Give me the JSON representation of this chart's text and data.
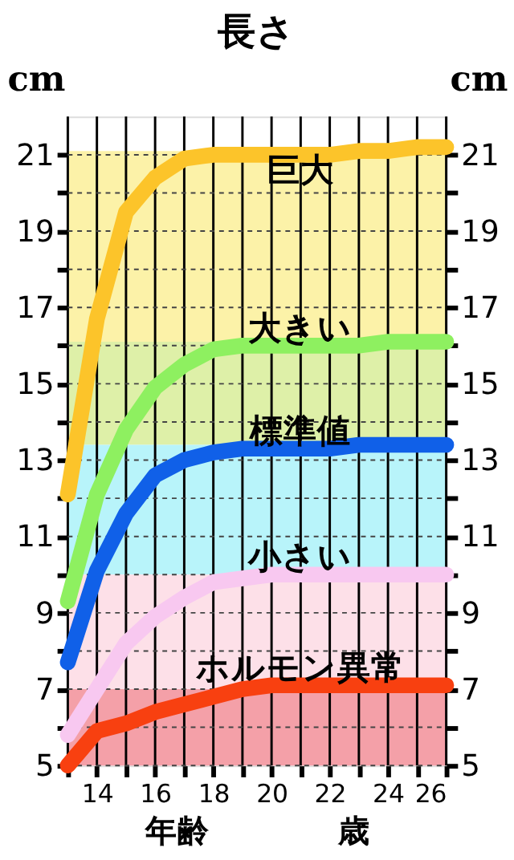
{
  "chart_data": {
    "type": "line",
    "title": "長さ",
    "xlabel": "年齢　　　　歳",
    "ylabel": "cm",
    "y2label": "cm",
    "x": [
      13,
      14,
      15,
      16,
      17,
      18,
      19,
      20,
      21,
      22,
      23,
      24,
      25,
      26
    ],
    "series": [
      {
        "name": "巨大",
        "color": "#fcc42a",
        "values": [
          12.1,
          16.7,
          19.5,
          20.4,
          20.9,
          21.0,
          21.0,
          21.0,
          21.0,
          21.0,
          21.1,
          21.1,
          21.2,
          21.2
        ]
      },
      {
        "name": "大きい",
        "color": "#8ef060",
        "values": [
          9.3,
          12.1,
          13.8,
          14.9,
          15.5,
          15.9,
          16.0,
          16.0,
          16.0,
          16.0,
          16.0,
          16.1,
          16.1,
          16.1
        ]
      },
      {
        "name": "標準値",
        "color": "#1060e8",
        "values": [
          7.7,
          10.1,
          11.6,
          12.6,
          13.0,
          13.2,
          13.3,
          13.3,
          13.3,
          13.3,
          13.4,
          13.4,
          13.4,
          13.4
        ]
      },
      {
        "name": "小さい",
        "color": "#f8c8f0",
        "values": [
          5.8,
          7.0,
          8.2,
          8.9,
          9.4,
          9.8,
          9.9,
          10.0,
          10.0,
          10.0,
          10.0,
          10.0,
          10.0,
          10.0
        ]
      },
      {
        "name": "ホルモン異常",
        "color": "#f84010",
        "values": [
          5.0,
          5.9,
          6.1,
          6.4,
          6.6,
          6.8,
          7.0,
          7.1,
          7.1,
          7.1,
          7.1,
          7.1,
          7.1,
          7.1
        ]
      }
    ],
    "bands": [
      {
        "axis": "y",
        "from": 16.1,
        "to": 21.1,
        "color": "#fcf2a8"
      },
      {
        "axis": "y",
        "from": 13.4,
        "to": 16.1,
        "color": "#def0a8"
      },
      {
        "axis": "y",
        "from": 10.0,
        "to": 13.4,
        "color": "#b8f4fa"
      },
      {
        "axis": "y",
        "from": 7.0,
        "to": 10.0,
        "color": "#fde0e8"
      },
      {
        "axis": "y",
        "from": 5.0,
        "to": 7.0,
        "color": "#f4a0a8"
      }
    ],
    "xlim": [
      13,
      26
    ],
    "xticks": [
      {
        "value": 13,
        "label": null
      },
      14,
      {
        "value": 15,
        "label": null
      },
      16,
      {
        "value": 17,
        "label": null
      },
      18,
      {
        "value": 19,
        "label": null
      },
      20,
      {
        "value": 21,
        "label": null
      },
      22,
      {
        "value": 23,
        "label": null
      },
      24,
      {
        "value": 25,
        "label": null
      },
      26
    ],
    "ylim": [
      5,
      22
    ],
    "yticks": [
      5,
      {
        "value": 6,
        "label": null
      },
      7,
      {
        "value": 8,
        "label": null
      },
      9,
      {
        "value": 10,
        "label": null
      },
      11,
      {
        "value": 12,
        "label": null
      },
      13,
      {
        "value": 14,
        "label": null
      },
      15,
      {
        "value": 16,
        "label": null
      },
      17,
      {
        "value": 18,
        "label": null
      },
      19,
      {
        "value": 20,
        "label": null
      },
      21
    ],
    "y2lim": [
      5,
      22
    ],
    "y2ticks": [
      5,
      {
        "value": 6,
        "label": null
      },
      7,
      {
        "value": 8,
        "label": null
      },
      9,
      {
        "value": 10,
        "label": null
      },
      11,
      {
        "value": 12,
        "label": null
      },
      13,
      {
        "value": 14,
        "label": null
      },
      15,
      {
        "value": 16,
        "label": null
      },
      17,
      {
        "value": 18,
        "label": null
      },
      19,
      {
        "value": 20,
        "label": null
      },
      21
    ],
    "grid": true,
    "line_style": "solid"
  }
}
